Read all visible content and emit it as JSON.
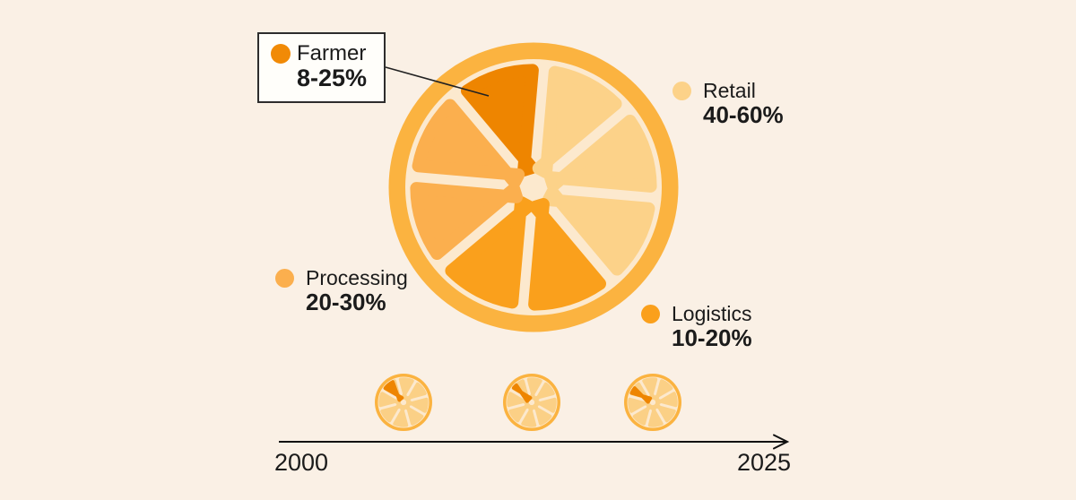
{
  "colors": {
    "background": "#FAF0E5",
    "rim": "#FBB340",
    "pith": "#FCE9CE",
    "farmer": "#EE8500",
    "farmer_dot": "#F18A06",
    "retail": "#FCD289",
    "processing": "#FBAF4E",
    "logistics": "#FAA01C",
    "mini_light": "#FBD086",
    "text": "#1B1B1B",
    "line": "#222222",
    "callout_bg": "#FFFEFA",
    "callout_border": "#2D2D2D"
  },
  "callout": {
    "label": "Farmer",
    "value": "8-25%"
  },
  "legend": {
    "retail": {
      "label": "Retail",
      "value": "40-60%"
    },
    "processing": {
      "label": "Processing",
      "value": "20-30%"
    },
    "logistics": {
      "label": "Logistics",
      "value": "10-20%"
    }
  },
  "timeline": {
    "start_label": "2000",
    "end_label": "2025"
  },
  "chart_data": {
    "type": "pie",
    "title": "",
    "segments": [
      {
        "label": "Farmer",
        "share": "8-25%",
        "wedge_count": 1,
        "color": "#EE8500"
      },
      {
        "label": "Retail",
        "share": "40-60%",
        "wedge_count": 3,
        "color": "#FCD289"
      },
      {
        "label": "Processing",
        "share": "20-30%",
        "wedge_count": 2,
        "color": "#FBAF4E"
      },
      {
        "label": "Logistics",
        "share": "10-20%",
        "wedge_count": 2,
        "color": "#FAA01C"
      }
    ],
    "wedge_order": [
      "farmer",
      "retail",
      "retail",
      "retail",
      "logistics",
      "logistics",
      "processing",
      "processing"
    ],
    "wedge_start_deg": 320,
    "wedge_span_deg": 45,
    "timeline_minis": [
      {
        "sector_offset_deg": -15,
        "dark_start_deg": 300,
        "dark_span_deg": 40
      },
      {
        "sector_offset_deg": -15,
        "dark_start_deg": 301,
        "dark_span_deg": 25
      },
      {
        "sector_offset_deg": -30,
        "dark_start_deg": 286,
        "dark_span_deg": 30
      }
    ],
    "x_axis": {
      "start": "2000",
      "end": "2025",
      "arrow": true
    }
  }
}
